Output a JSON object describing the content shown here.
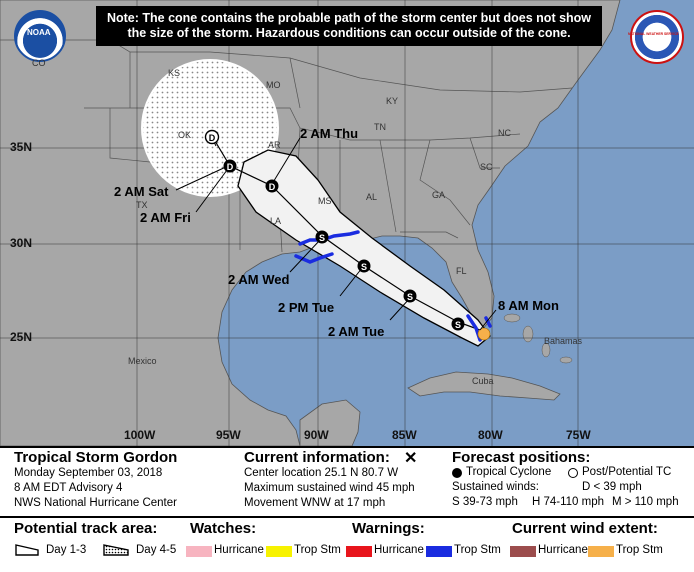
{
  "note": {
    "line1": "Note: The cone contains the probable path of the storm center but does not show",
    "line2": "the size of the storm. Hazardous conditions can occur outside of the cone."
  },
  "logos": {
    "left_text": "NOAA",
    "right_text": "NATIONAL WEATHER SERVICE"
  },
  "states": [
    "CO",
    "KS",
    "MO",
    "KY",
    "TN",
    "NC",
    "SC",
    "GA",
    "AL",
    "MS",
    "AR",
    "OK",
    "TX",
    "LA",
    "FL"
  ],
  "latitudes": [
    "35N",
    "30N",
    "25N"
  ],
  "longitudes": [
    "100W",
    "95W",
    "90W",
    "85W",
    "80W",
    "75W"
  ],
  "countries": [
    "Mexico",
    "Cuba",
    "Bahamas"
  ],
  "forecast_labels": {
    "thu": "2 AM Thu",
    "sat": "2 AM Sat",
    "fri": "2 AM Fri",
    "wed": "2 AM Wed",
    "tue_pm": "2 PM Tue",
    "tue_am": "2 AM Tue",
    "mon": "8 AM Mon"
  },
  "markers": {
    "depression": "D",
    "storm": "S"
  },
  "storm": {
    "name": "Tropical Storm Gordon",
    "date": "Monday September 03, 2018",
    "advisory": "8 AM EDT Advisory 4",
    "center": "NWS National Hurricane Center"
  },
  "current": {
    "title": "Current information:",
    "location": "Center location 25.1 N 80.7 W",
    "wind": "Maximum sustained wind 45 mph",
    "movement": "Movement WNW at 17 mph"
  },
  "forecast_positions": {
    "title": "Forecast positions:",
    "tropical": "Tropical Cyclone",
    "post": "Post/Potential TC",
    "sustained": "Sustained winds:",
    "d": "D < 39 mph",
    "s": "S 39-73 mph",
    "h": "H 74-110 mph",
    "m": "M > 110 mph"
  },
  "legend": {
    "track_title": "Potential track area:",
    "day13": "Day 1-3",
    "day45": "Day 4-5",
    "watches_title": "Watches:",
    "warnings_title": "Warnings:",
    "wind_title": "Current wind extent:",
    "hurricane": "Hurricane",
    "tropstm": "Trop Stm"
  },
  "colors": {
    "water": "#7b9dc6",
    "land": "#a7a7a7",
    "cone": "#f2f2f2",
    "hurricane_watch": "#f7b4c0",
    "tropstm_watch": "#f7f200",
    "hurricane_warning": "#e8151c",
    "tropstm_warning": "#1a2ce0",
    "hurricane_wind": "#9c4d4d",
    "tropstm_wind": "#f6b04a"
  }
}
